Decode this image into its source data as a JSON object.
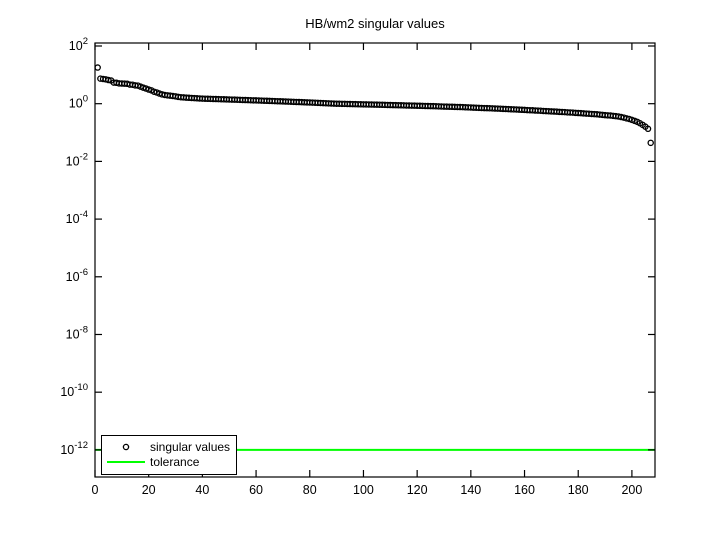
{
  "figure": {
    "background": "#ffffff"
  },
  "chart_data": {
    "type": "scatter",
    "title": "HB/wm2 singular values",
    "xlabel": "",
    "ylabel": "",
    "y_scale": "log10",
    "grid": false,
    "axis_color": "#000000",
    "xlim": [
      0,
      208.6
    ],
    "ylim_exponents": [
      2.104,
      -12.94
    ],
    "x_ticks": [
      0,
      20,
      40,
      60,
      80,
      100,
      120,
      140,
      160,
      180,
      200
    ],
    "y_tick_exponents": [
      2,
      0,
      -2,
      -4,
      -6,
      -8,
      -10,
      -12
    ],
    "legend_position": "southwest",
    "series": [
      {
        "name": "singular values",
        "type": "scatter",
        "marker": "circle",
        "color": "#000000",
        "x_start_index": 1,
        "values": [
          17.9,
          7.4,
          7.2,
          7.0,
          6.6,
          6.4,
          5.4,
          5.3,
          5.05,
          5.0,
          4.95,
          4.9,
          4.6,
          4.55,
          4.3,
          4.25,
          3.9,
          3.6,
          3.35,
          3.1,
          2.9,
          2.6,
          2.45,
          2.25,
          2.1,
          2.0,
          1.95,
          1.9,
          1.85,
          1.8,
          1.72,
          1.68,
          1.65,
          1.62,
          1.6,
          1.58,
          1.56,
          1.54,
          1.52,
          1.5,
          1.49,
          1.48,
          1.47,
          1.46,
          1.45,
          1.44,
          1.43,
          1.42,
          1.41,
          1.4,
          1.39,
          1.38,
          1.37,
          1.36,
          1.35,
          1.34,
          1.33,
          1.32,
          1.31,
          1.3,
          1.29,
          1.28,
          1.27,
          1.26,
          1.25,
          1.24,
          1.23,
          1.22,
          1.21,
          1.2,
          1.19,
          1.18,
          1.17,
          1.16,
          1.15,
          1.14,
          1.13,
          1.12,
          1.11,
          1.1,
          1.09,
          1.08,
          1.07,
          1.06,
          1.05,
          1.04,
          1.03,
          1.02,
          1.01,
          1.0,
          0.995,
          0.99,
          0.985,
          0.98,
          0.975,
          0.97,
          0.965,
          0.96,
          0.955,
          0.95,
          0.945,
          0.94,
          0.935,
          0.93,
          0.925,
          0.92,
          0.915,
          0.91,
          0.905,
          0.9,
          0.895,
          0.89,
          0.885,
          0.88,
          0.875,
          0.87,
          0.865,
          0.86,
          0.855,
          0.85,
          0.845,
          0.84,
          0.835,
          0.83,
          0.825,
          0.82,
          0.815,
          0.81,
          0.8,
          0.795,
          0.79,
          0.785,
          0.78,
          0.775,
          0.77,
          0.765,
          0.76,
          0.75,
          0.745,
          0.74,
          0.73,
          0.725,
          0.72,
          0.71,
          0.705,
          0.7,
          0.695,
          0.69,
          0.68,
          0.675,
          0.67,
          0.66,
          0.655,
          0.65,
          0.64,
          0.635,
          0.63,
          0.62,
          0.615,
          0.61,
          0.6,
          0.595,
          0.59,
          0.58,
          0.575,
          0.57,
          0.56,
          0.555,
          0.55,
          0.54,
          0.535,
          0.53,
          0.52,
          0.515,
          0.51,
          0.5,
          0.495,
          0.49,
          0.48,
          0.475,
          0.47,
          0.46,
          0.455,
          0.45,
          0.44,
          0.435,
          0.43,
          0.42,
          0.41,
          0.4,
          0.395,
          0.39,
          0.38,
          0.37,
          0.36,
          0.345,
          0.33,
          0.31,
          0.295,
          0.275,
          0.255,
          0.235,
          0.21,
          0.185,
          0.16,
          0.135,
          0.044
        ]
      },
      {
        "name": "tolerance",
        "type": "hline",
        "color": "#00ff00",
        "value": 1e-12,
        "line_width": 2
      }
    ]
  }
}
